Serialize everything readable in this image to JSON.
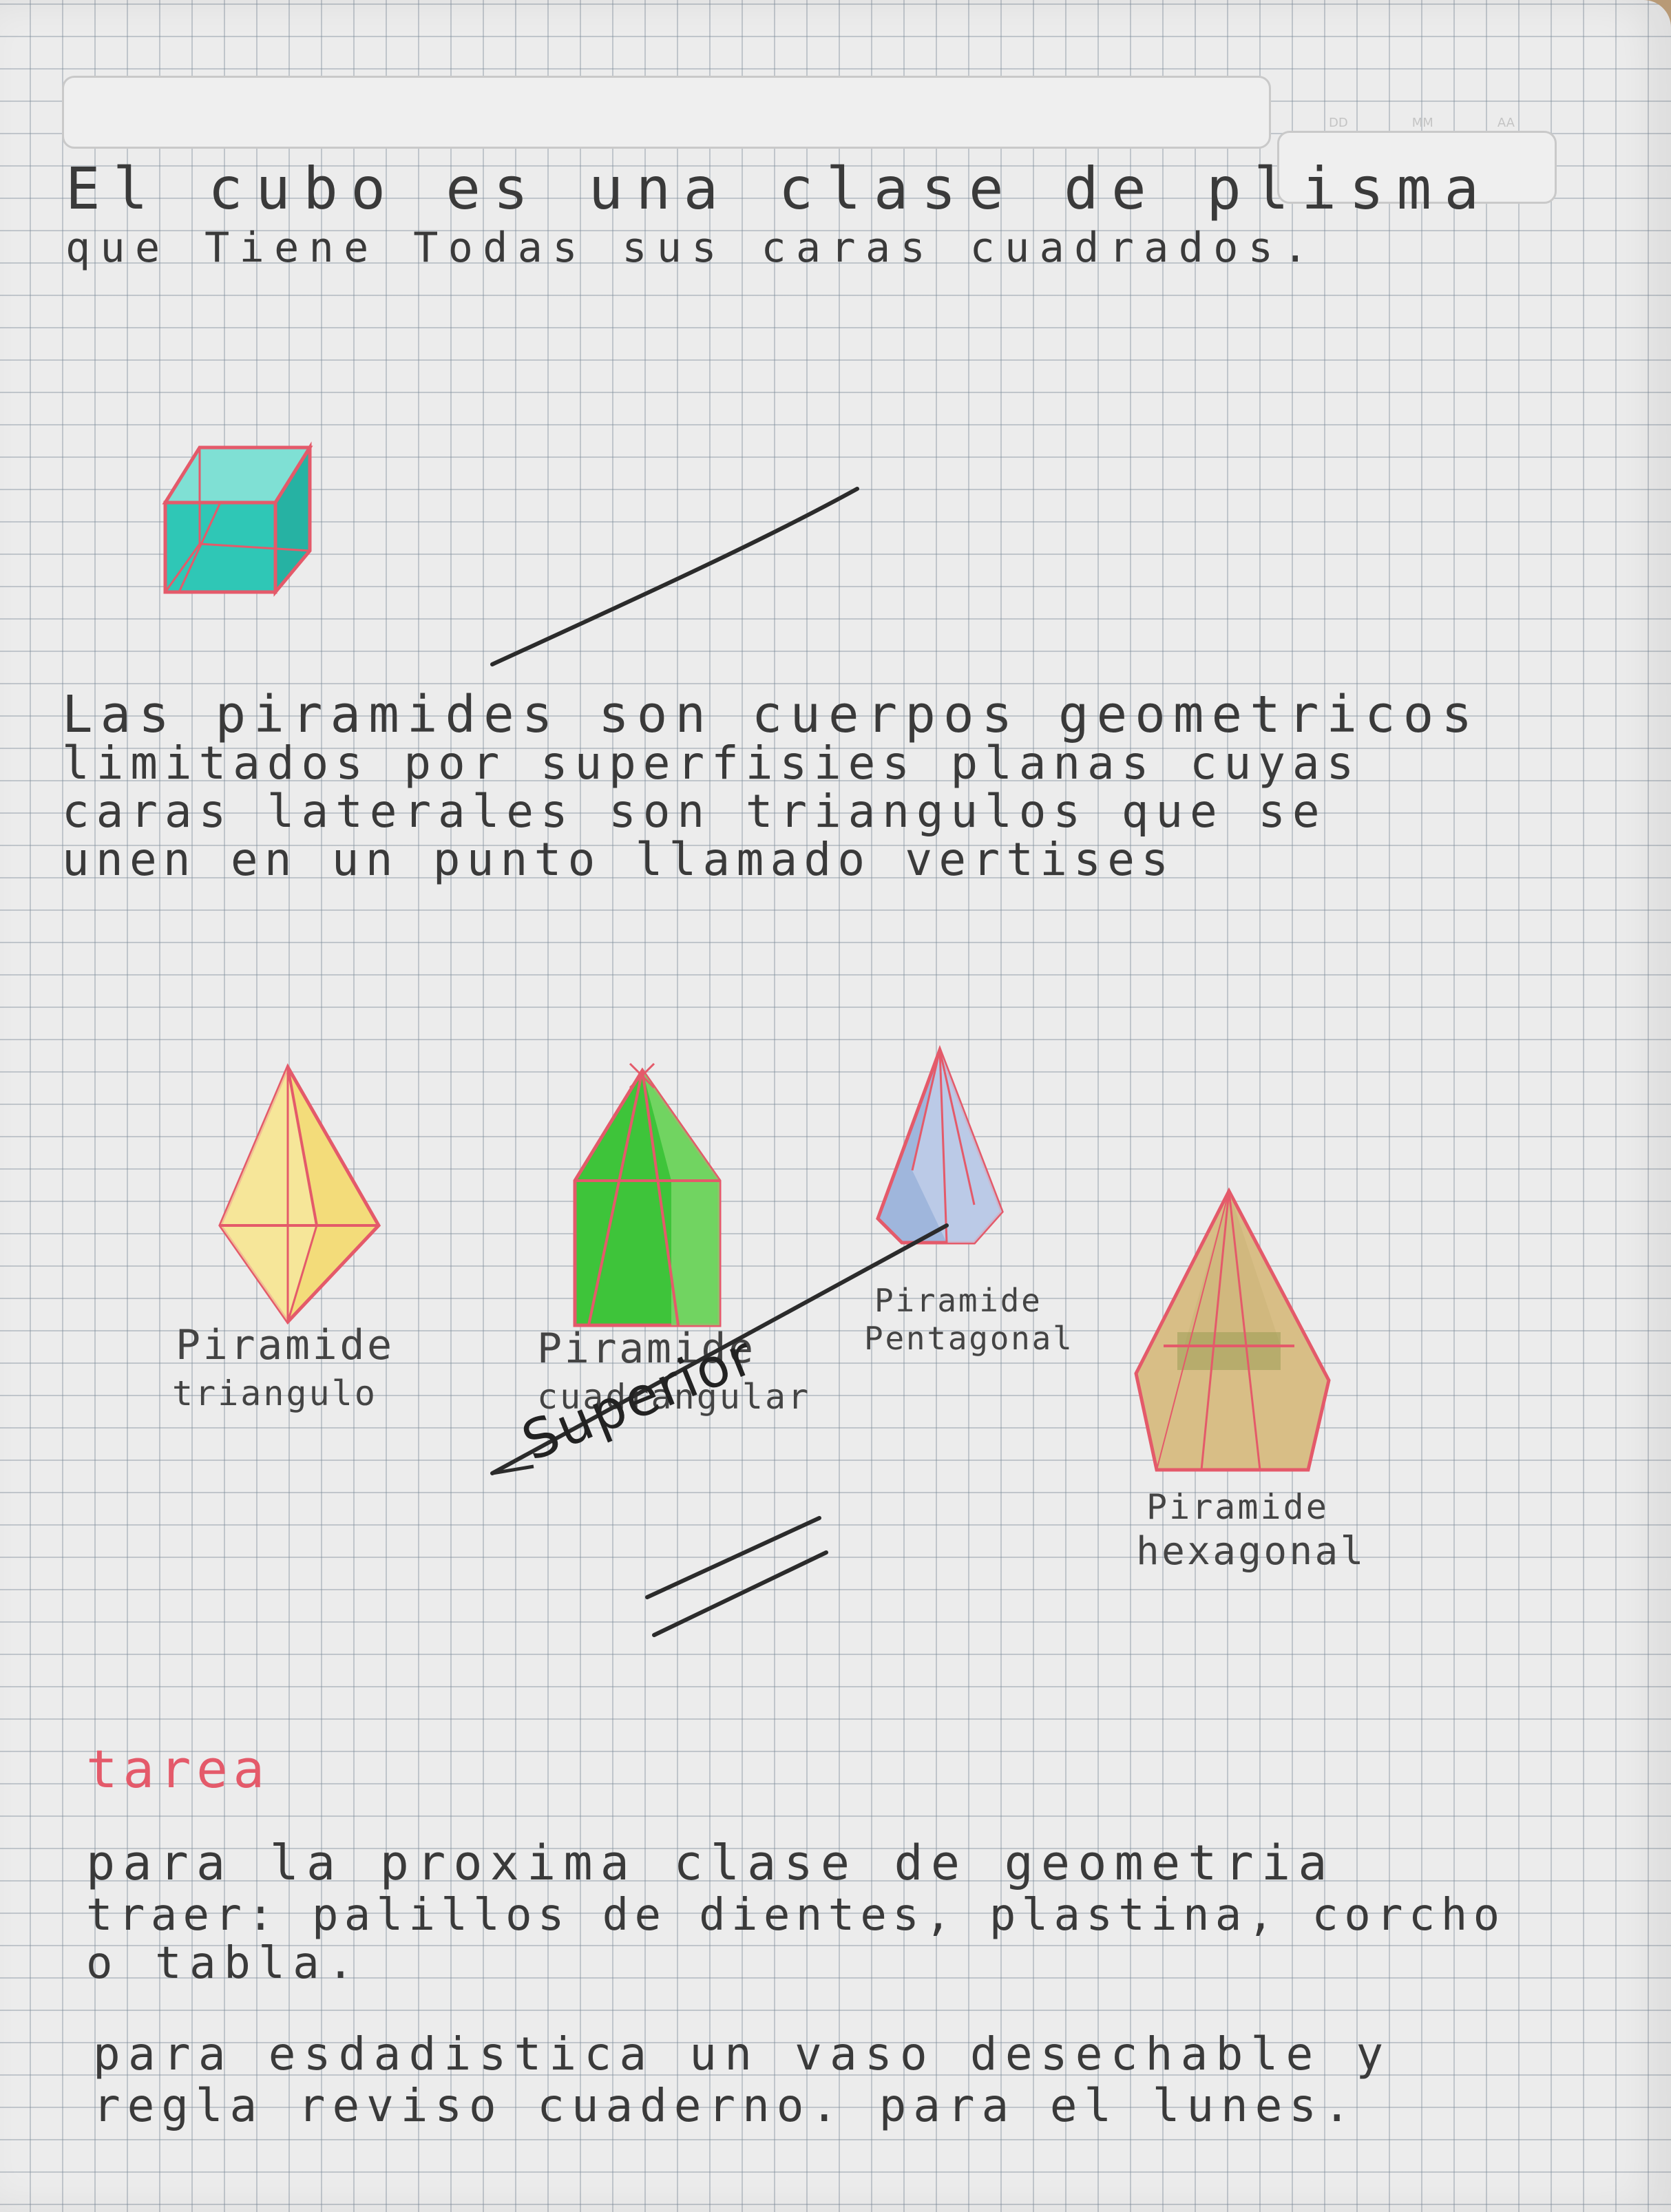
{
  "header": {
    "date_fields": [
      "DD",
      "MM",
      "AA"
    ]
  },
  "cube_paragraph": {
    "lines": [
      "El cubo es una clase de plisma",
      "que Tiene Todas sus caras cuadrados."
    ]
  },
  "pyramids_paragraph": {
    "lines": [
      "Las piramides son cuerpos geometricos",
      "limitados por superfisies planas cuyas",
      "caras laterales son triangulos que se",
      "unen en un punto llamado vertises"
    ]
  },
  "shapes": {
    "triangular": [
      "Piramide",
      "triangulo"
    ],
    "square": [
      "Piramide",
      "cuadrangular"
    ],
    "pentagonal": [
      "Piramide",
      "Pentagonal"
    ],
    "hexagonal": [
      "Piramide",
      "hexagonal"
    ]
  },
  "annotation": {
    "text": "Superior"
  },
  "homework": {
    "title": "tarea",
    "lines": [
      "para la proxima clase de geometria",
      "traer: palillos de dientes, plastina, corcho",
      "o tabla."
    ],
    "stats_lines": [
      "para esdadistica un vaso desechable y",
      "regla reviso cuaderno. para el lunes."
    ]
  },
  "colors": {
    "pencil_red": "#e45a6a",
    "cube_fill": "#2fc7b6",
    "yellow_fill": "#f3dc7a",
    "green_fill": "#3ec43a",
    "blue_fill": "#9fb6dc",
    "tan_fill": "#d8be86"
  }
}
